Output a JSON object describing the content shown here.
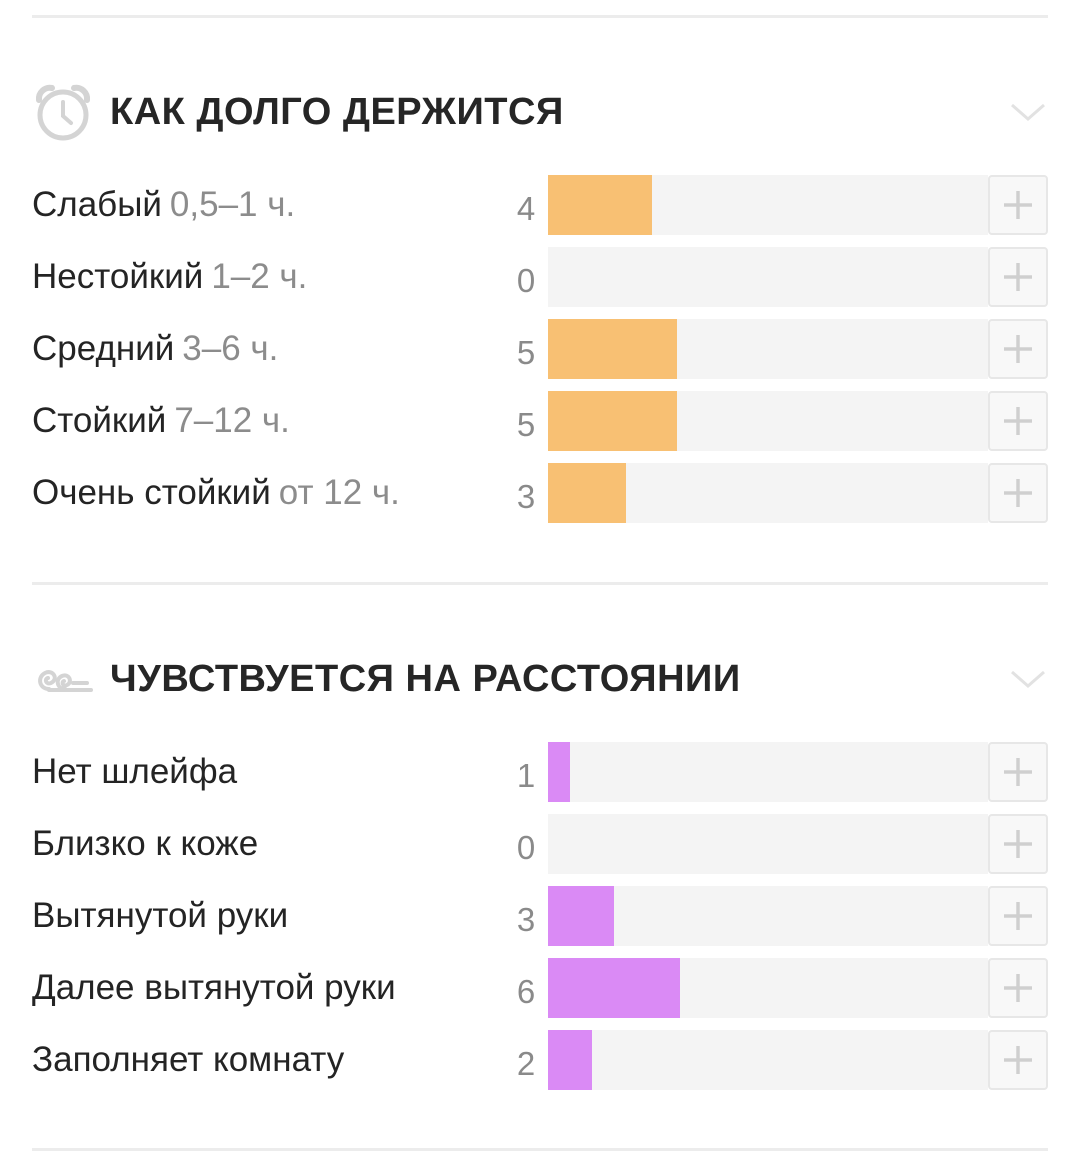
{
  "colors": {
    "longevity_bar": "#f8c073",
    "sillage_bar": "#da8af5"
  },
  "longevity": {
    "title": "КАК ДОЛГО ДЕРЖИТСЯ",
    "icon": "alarm-clock-icon",
    "max_value": 17,
    "rows": [
      {
        "label": "Слабый",
        "sub": "0,5–1 ч.",
        "count": 4
      },
      {
        "label": "Нестойкий",
        "sub": "1–2 ч.",
        "count": 0
      },
      {
        "label": "Средний",
        "sub": "3–6 ч.",
        "count": 5
      },
      {
        "label": "Стойкий",
        "sub": "7–12 ч.",
        "count": 5
      },
      {
        "label": "Очень стойкий",
        "sub": "от 12 ч.",
        "count": 3
      }
    ]
  },
  "sillage": {
    "title": "ЧУВСТВУЕТСЯ НА РАССТОЯНИИ",
    "icon": "wind-swirl-icon",
    "max_value": 20,
    "rows": [
      {
        "label": "Нет шлейфа",
        "count": 1
      },
      {
        "label": "Близко к коже",
        "count": 0
      },
      {
        "label": "Вытянутой руки",
        "count": 3
      },
      {
        "label": "Далее вытянутой руки",
        "count": 6
      },
      {
        "label": "Заполняет комнату",
        "count": 2
      }
    ]
  }
}
